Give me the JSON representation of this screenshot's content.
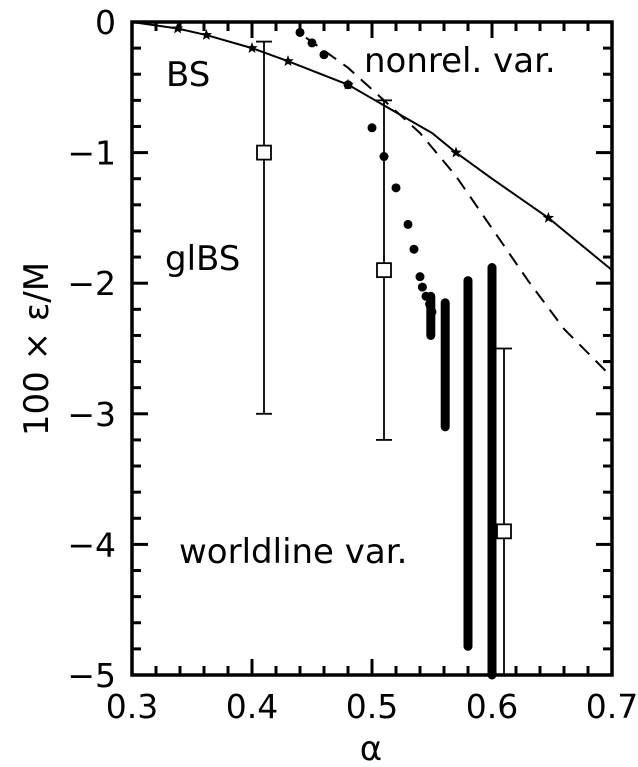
{
  "chart_data": {
    "type": "scatter",
    "xlabel": "α",
    "ylabel": "100 × ε/M",
    "xlim": [
      0.3,
      0.7
    ],
    "ylim": [
      -5,
      0
    ],
    "x_ticks": [
      "0.3",
      "0.4",
      "0.5",
      "0.6",
      "0.7"
    ],
    "y_ticks": [
      "0",
      "−1",
      "−2",
      "−3",
      "−4",
      "−5"
    ],
    "grid": false,
    "annotations": [
      "BS",
      "nonrel. var.",
      "glBS",
      "worldline var."
    ],
    "series": [
      {
        "label": "BS",
        "style": "line-with-stars",
        "x": [
          0.3,
          0.338,
          0.362,
          0.4,
          0.43,
          0.48,
          0.55,
          0.57,
          0.6,
          0.647,
          0.7
        ],
        "y": [
          0.0,
          -0.05,
          -0.1,
          -0.2,
          -0.3,
          -0.48,
          -0.85,
          -1.0,
          -1.2,
          -1.5,
          -1.9
        ],
        "marker_x": [
          0.338,
          0.362,
          0.4,
          0.43,
          0.48,
          0.57,
          0.647
        ],
        "marker_y": [
          -0.05,
          -0.1,
          -0.2,
          -0.3,
          -0.48,
          -1.0,
          -1.5
        ]
      },
      {
        "label": "nonrel. var.",
        "style": "dashed-line",
        "x": [
          0.445,
          0.48,
          0.51,
          0.54,
          0.57,
          0.6,
          0.63,
          0.66,
          0.7
        ],
        "y": [
          -0.12,
          -0.35,
          -0.6,
          -0.85,
          -1.18,
          -1.58,
          -1.98,
          -2.35,
          -2.72
        ]
      },
      {
        "label": "worldline var.",
        "style": "dots",
        "x": [
          0.44,
          0.45,
          0.46,
          0.48,
          0.5,
          0.51,
          0.52,
          0.53,
          0.535,
          0.54,
          0.542,
          0.545,
          0.548,
          0.55
        ],
        "y": [
          -0.08,
          -0.16,
          -0.25,
          -0.48,
          -0.81,
          -1.03,
          -1.27,
          -1.55,
          -1.74,
          -1.95,
          -2.03,
          -2.1,
          -2.16,
          -2.22
        ]
      },
      {
        "label": "worldline var.",
        "style": "thick-vertical-bars",
        "bars": [
          {
            "x": 0.549,
            "y_low": -2.4,
            "y_high": -2.1
          },
          {
            "x": 0.561,
            "y_low": -3.1,
            "y_high": -2.15
          },
          {
            "x": 0.58,
            "y_low": -4.78,
            "y_high": -1.98
          },
          {
            "x": 0.6,
            "y_low": -5.0,
            "y_high": -1.88
          }
        ]
      },
      {
        "label": "glBS",
        "style": "open-squares-with-errorbars",
        "x": [
          0.41,
          0.51,
          0.61
        ],
        "y": [
          -1.0,
          -1.9,
          -3.9
        ],
        "y_high": [
          -0.15,
          -0.6,
          -2.5
        ],
        "y_low": [
          -3.0,
          -3.2,
          -5.0
        ]
      }
    ]
  }
}
